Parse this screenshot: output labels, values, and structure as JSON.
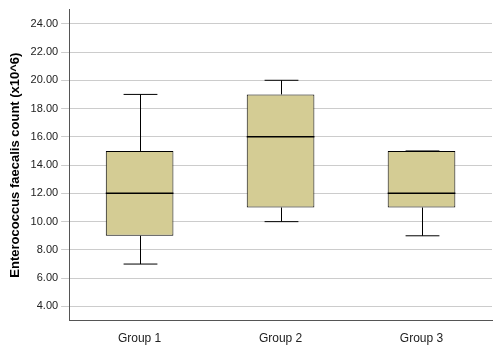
{
  "chart_data": {
    "type": "boxplot",
    "categories": [
      "Group 1",
      "Group 2",
      "Group 3"
    ],
    "values": [
      {
        "min": 7,
        "q1": 9,
        "median": 12,
        "q3": 15,
        "max": 19
      },
      {
        "min": 10,
        "q1": 11,
        "median": 16,
        "q3": 19,
        "max": 20
      },
      {
        "min": 9,
        "q1": 11,
        "median": 12,
        "q3": 15,
        "max": 15
      }
    ],
    "color": "#d4cc94",
    "y_label": "Enterococcus faecalis count (x10^6)",
    "ylim": [
      3,
      25
    ],
    "yticks": [
      {
        "value": 4,
        "label": "4.00"
      },
      {
        "value": 6,
        "label": "6.00"
      },
      {
        "value": 8,
        "label": "8.00"
      },
      {
        "value": 10,
        "label": "10.00"
      },
      {
        "value": 12,
        "label": "12.00"
      },
      {
        "value": 14,
        "label": "14.00"
      },
      {
        "value": 16,
        "label": "16.00"
      },
      {
        "value": 18,
        "label": "18.00"
      },
      {
        "value": 20,
        "label": "20.00"
      },
      {
        "value": 22,
        "label": "22.00"
      },
      {
        "value": 24,
        "label": "24.00"
      }
    ],
    "grid": true
  }
}
